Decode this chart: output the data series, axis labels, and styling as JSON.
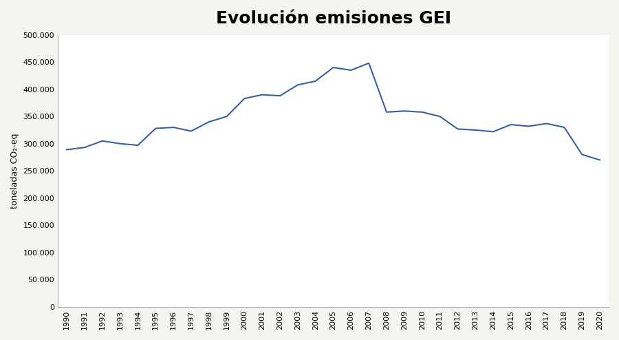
{
  "title": "Evolución emisiones GEI",
  "ylabel": "toneladas CO₂-eq",
  "years": [
    1990,
    1991,
    1992,
    1993,
    1994,
    1995,
    1996,
    1997,
    1998,
    1999,
    2000,
    2001,
    2002,
    2003,
    2004,
    2005,
    2006,
    2007,
    2008,
    2009,
    2010,
    2011,
    2012,
    2013,
    2014,
    2015,
    2016,
    2017,
    2018,
    2019,
    2020
  ],
  "values": [
    289000,
    293000,
    305000,
    300000,
    297000,
    328000,
    330000,
    323000,
    340000,
    350000,
    383000,
    390000,
    388000,
    408000,
    415000,
    440000,
    435000,
    448000,
    358000,
    360000,
    358000,
    350000,
    327000,
    325000,
    322000,
    335000,
    332000,
    337000,
    330000,
    280000,
    270000
  ],
  "line_color": "#3a5fa0",
  "ylim": [
    0,
    500000
  ],
  "ytick_values": [
    0,
    50000,
    100000,
    150000,
    200000,
    250000,
    300000,
    350000,
    400000,
    450000,
    500000
  ],
  "ytick_labels": [
    "0",
    "50.000",
    "100.000",
    "150.000",
    "200.000",
    "250.000",
    "300.000",
    "350.000",
    "400.000",
    "450.000",
    "500.000"
  ],
  "background_color": "#f5f5f0",
  "plot_bg_color": "#ffffff",
  "title_fontsize": 18,
  "axis_label_fontsize": 9,
  "tick_fontsize": 8,
  "line_width": 1.5
}
